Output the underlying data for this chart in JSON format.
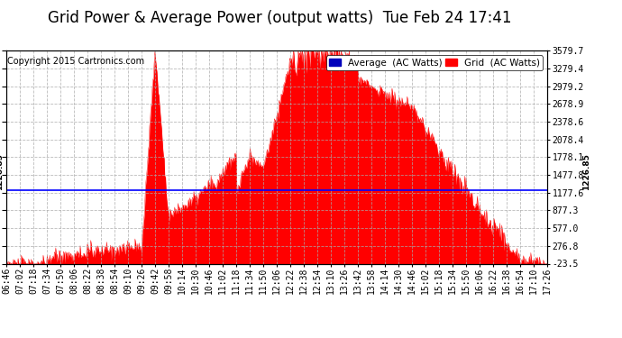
{
  "title": "Grid Power & Average Power (output watts)  Tue Feb 24 17:41",
  "copyright": "Copyright 2015 Cartronics.com",
  "yticks": [
    -23.5,
    276.8,
    577.0,
    877.3,
    1177.6,
    1477.8,
    1778.1,
    2078.4,
    2378.6,
    2678.9,
    2979.2,
    3279.4,
    3579.7
  ],
  "ymin": -23.5,
  "ymax": 3579.7,
  "hline_value": 1226.85,
  "hline_label": "1226.85",
  "hline_color": "#0000FF",
  "xtick_labels": [
    "06:46",
    "07:02",
    "07:18",
    "07:34",
    "07:50",
    "08:06",
    "08:22",
    "08:38",
    "08:54",
    "09:10",
    "09:26",
    "09:42",
    "09:58",
    "10:14",
    "10:30",
    "10:46",
    "11:02",
    "11:18",
    "11:34",
    "11:50",
    "12:06",
    "12:22",
    "12:38",
    "12:54",
    "13:10",
    "13:26",
    "13:42",
    "13:58",
    "14:14",
    "14:30",
    "14:46",
    "15:02",
    "15:18",
    "15:34",
    "15:50",
    "16:06",
    "16:22",
    "16:38",
    "16:54",
    "17:10",
    "17:26"
  ],
  "fill_color": "#FF0000",
  "line_color": "#FF0000",
  "bg_color": "#FFFFFF",
  "grid_color": "#AAAAAA",
  "legend_avg_color": "#0000BB",
  "legend_grid_color": "#FF0000",
  "title_fontsize": 12,
  "tick_fontsize": 7,
  "copyright_fontsize": 7
}
